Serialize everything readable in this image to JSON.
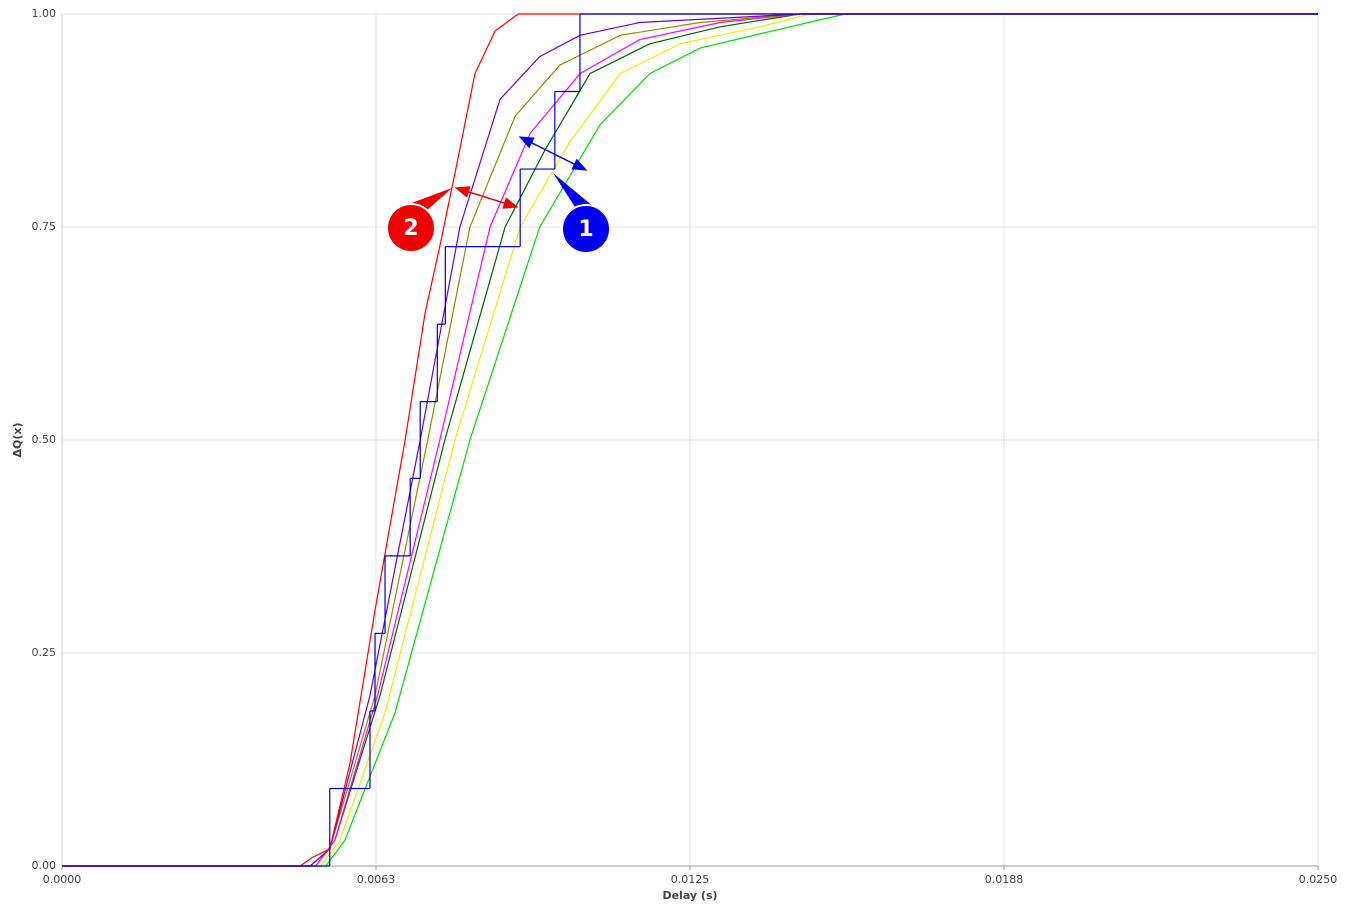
{
  "chart_data": {
    "type": "line",
    "xlabel": "Delay (s)",
    "ylabel": "ΔQ(x)",
    "xlim": [
      0,
      0.025
    ],
    "ylim": [
      0,
      1
    ],
    "xticks": [
      {
        "value": 0,
        "label": "0.0000"
      },
      {
        "value": 0.00625,
        "label": "0.0063"
      },
      0.0125,
      {
        "value": 0.01875,
        "label": "0.0188"
      },
      {
        "value": 0.025,
        "label": "0.0250"
      }
    ],
    "yticks": [
      {
        "value": 0,
        "label": "0.00"
      },
      0.25,
      {
        "value": 0.5,
        "label": "0.50"
      },
      0.75,
      {
        "value": 1,
        "label": "1.00"
      }
    ],
    "grid": true,
    "series": [
      {
        "color": "#00dd00",
        "x": [
          0,
          0.00525,
          0.00563,
          0.00663,
          0.00812,
          0.00951,
          0.01071,
          0.0117,
          0.0127,
          0.01449,
          0.01559,
          0.025
        ],
        "values": [
          0,
          0,
          0.03,
          0.18,
          0.5,
          0.75,
          0.87,
          0.93,
          0.96,
          0.985,
          1,
          1
        ]
      },
      {
        "color": "#eeee00",
        "x": [
          0,
          0.00515,
          0.00553,
          0.00643,
          0.00782,
          0.00912,
          0.01011,
          0.01111,
          0.0123,
          0.01389,
          0.01489,
          0.025
        ],
        "values": [
          0,
          0,
          0.03,
          0.18,
          0.5,
          0.75,
          0.85,
          0.93,
          0.965,
          0.985,
          1,
          1
        ]
      },
      {
        "color": "#006400",
        "x": [
          0,
          0.00505,
          0.00543,
          0.00633,
          0.00762,
          0.00882,
          0.00961,
          0.01051,
          0.0117,
          0.0131,
          0.01469,
          0.025
        ],
        "values": [
          0,
          0,
          0.03,
          0.2,
          0.5,
          0.75,
          0.84,
          0.93,
          0.965,
          0.985,
          1,
          1
        ]
      },
      {
        "color": "#ff00ff",
        "x": [
          0,
          0.00505,
          0.00543,
          0.00628,
          0.00752,
          0.00852,
          0.00932,
          0.01031,
          0.0115,
          0.0131,
          0.01469,
          0.025
        ],
        "values": [
          0,
          0,
          0.03,
          0.2,
          0.5,
          0.75,
          0.86,
          0.93,
          0.97,
          0.99,
          1,
          1
        ]
      },
      {
        "color": "#998800",
        "x": [
          0,
          0.00494,
          0.00533,
          0.00623,
          0.00728,
          0.00812,
          0.00902,
          0.00991,
          0.01111,
          0.0127,
          0.01469,
          0.025
        ],
        "values": [
          0,
          0,
          0.02,
          0.2,
          0.5,
          0.75,
          0.88,
          0.94,
          0.975,
          0.99,
          1,
          1
        ]
      },
      {
        "color": "#7700bb",
        "x": [
          0,
          0.00494,
          0.00533,
          0.00613,
          0.00713,
          0.00792,
          0.00872,
          0.00951,
          0.01031,
          0.0115,
          0.01469,
          0.025
        ],
        "values": [
          0,
          0,
          0.02,
          0.2,
          0.5,
          0.75,
          0.9,
          0.95,
          0.975,
          0.99,
          1,
          1
        ]
      },
      {
        "color": "#ff0000",
        "x": [
          0,
          0.00474,
          0.00498,
          0.00533,
          0.00573,
          0.00623,
          0.00683,
          0.00723,
          0.00753,
          0.00788,
          0.00822,
          0.00862,
          0.00908,
          0.025
        ],
        "values": [
          0,
          0,
          0.01,
          0.02,
          0.12,
          0.3,
          0.5,
          0.65,
          0.73,
          0.83,
          0.93,
          0.98,
          1,
          1
        ]
      },
      {
        "color": "#0000cc",
        "step": true,
        "x": [
          0,
          0.00533,
          0.00613,
          0.00623,
          0.00643,
          0.00693,
          0.00713,
          0.00747,
          0.00763,
          0.00912,
          0.00981,
          0.01031,
          0.025
        ],
        "values": [
          0,
          0.091,
          0.182,
          0.273,
          0.364,
          0.455,
          0.545,
          0.636,
          0.727,
          0.818,
          0.909,
          1,
          1
        ]
      }
    ],
    "annotations": [
      {
        "label": "1",
        "color": "#0000ee"
      },
      {
        "label": "2",
        "color": "#ee0000"
      }
    ]
  }
}
